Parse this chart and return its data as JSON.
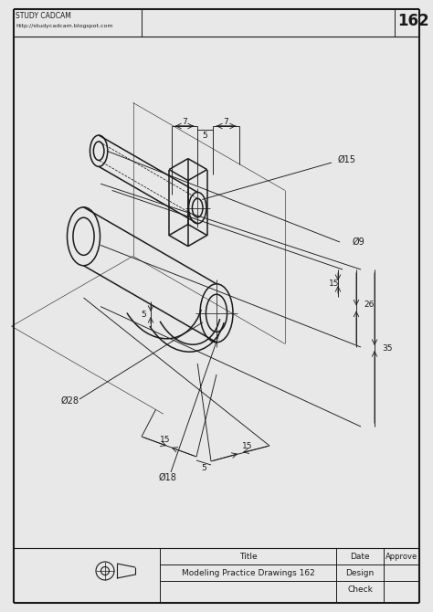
{
  "bg_color": "#e8e8e8",
  "paper_color": "#ffffff",
  "line_color": "#1a1a1a",
  "title": "Modeling Practice Drawings 162",
  "drawing_number": "162",
  "header_line1": "STUDY CADCAM",
  "header_line2": "http://studycadcam.blogspot.com",
  "dims": {
    "phi15": "Ø15",
    "phi9": "Ø9",
    "phi28": "Ø28",
    "phi18": "Ø18",
    "d7a": "7",
    "d5a": "5",
    "d7b": "7",
    "d5b": "5",
    "d15a": "15",
    "d15b": "15",
    "d5c": "5",
    "d26": "26",
    "d35": "35"
  },
  "title_block": {
    "title_label": "Title",
    "date_label": "Date",
    "approve_label": "Approve",
    "design_label": "Design",
    "check_label": "Check",
    "title_value": "Modeling Practice Drawings 162"
  }
}
